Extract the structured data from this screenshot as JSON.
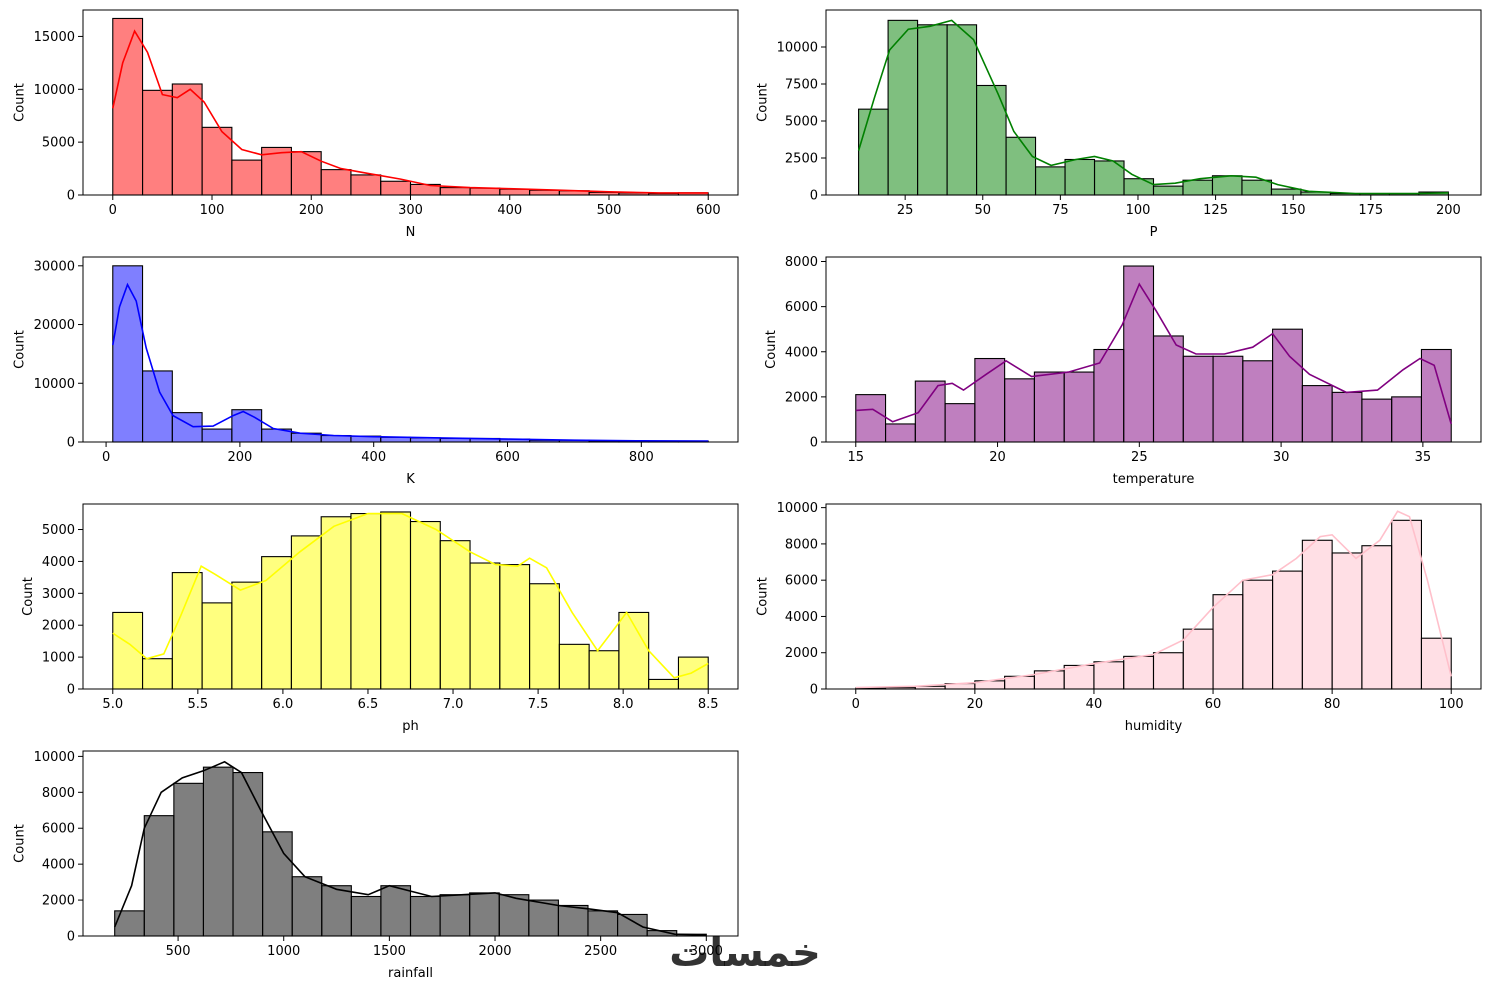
{
  "watermark": "خمسات",
  "chart_data": [
    {
      "type": "histogram",
      "color": "#ff0000",
      "xlabel": "N",
      "ylabel": "Count",
      "xlim": [
        -30,
        630
      ],
      "ylim": [
        0,
        17500
      ],
      "xticks": [
        0,
        100,
        200,
        300,
        400,
        500,
        600
      ],
      "xtick_labels": [
        "0",
        "100",
        "200",
        "300",
        "400",
        "500",
        "600"
      ],
      "yticks": [
        0,
        5000,
        10000,
        15000
      ],
      "ytick_labels": [
        "0",
        "5000",
        "10000",
        "15000"
      ],
      "bins": [
        0,
        30,
        60,
        90,
        120,
        150,
        180,
        210,
        240,
        270,
        300,
        330,
        360,
        390,
        420,
        450,
        480,
        510,
        540,
        570,
        600
      ],
      "counts": [
        16700,
        9900,
        10500,
        6400,
        3300,
        4500,
        4100,
        2400,
        1900,
        1300,
        1000,
        700,
        650,
        550,
        450,
        400,
        250,
        200,
        150,
        200
      ],
      "kde": [
        [
          0,
          8200
        ],
        [
          10,
          12500
        ],
        [
          22,
          15500
        ],
        [
          35,
          13500
        ],
        [
          50,
          9500
        ],
        [
          65,
          9200
        ],
        [
          78,
          10000
        ],
        [
          92,
          8800
        ],
        [
          110,
          6000
        ],
        [
          130,
          4300
        ],
        [
          150,
          3800
        ],
        [
          170,
          4000
        ],
        [
          190,
          4100
        ],
        [
          210,
          3200
        ],
        [
          230,
          2500
        ],
        [
          260,
          2000
        ],
        [
          290,
          1500
        ],
        [
          320,
          900
        ],
        [
          360,
          700
        ],
        [
          400,
          600
        ],
        [
          450,
          450
        ],
        [
          500,
          300
        ],
        [
          550,
          200
        ],
        [
          600,
          200
        ]
      ]
    },
    {
      "type": "histogram",
      "color": "#008000",
      "xlabel": "P",
      "ylabel": "Count",
      "xlim": [
        -0.5,
        210.5
      ],
      "ylim": [
        0,
        12500
      ],
      "xticks": [
        25,
        50,
        75,
        100,
        125,
        150,
        175,
        200
      ],
      "xtick_labels": [
        "25",
        "50",
        "75",
        "100",
        "125",
        "150",
        "175",
        "200"
      ],
      "yticks": [
        0,
        2500,
        5000,
        7500,
        10000
      ],
      "ytick_labels": [
        "0",
        "2500",
        "5000",
        "7500",
        "10000"
      ],
      "bins": [
        10,
        19.5,
        29,
        38.5,
        48,
        57.5,
        67,
        76.5,
        86,
        95.5,
        105,
        114.5,
        124,
        133.5,
        143,
        152.5,
        162,
        171.5,
        181,
        190.5,
        200
      ],
      "counts": [
        5800,
        11800,
        11500,
        11500,
        7400,
        3900,
        1900,
        2400,
        2300,
        1100,
        600,
        1000,
        1300,
        1000,
        400,
        200,
        100,
        100,
        100,
        200
      ],
      "kde": [
        [
          10,
          3000
        ],
        [
          15,
          6500
        ],
        [
          20,
          9800
        ],
        [
          26,
          11200
        ],
        [
          33,
          11400
        ],
        [
          40,
          11800
        ],
        [
          47,
          10500
        ],
        [
          55,
          6800
        ],
        [
          60,
          4300
        ],
        [
          66,
          2600
        ],
        [
          72,
          2000
        ],
        [
          80,
          2400
        ],
        [
          86,
          2600
        ],
        [
          92,
          2300
        ],
        [
          98,
          1400
        ],
        [
          105,
          700
        ],
        [
          112,
          800
        ],
        [
          120,
          1100
        ],
        [
          130,
          1300
        ],
        [
          138,
          1200
        ],
        [
          145,
          700
        ],
        [
          155,
          250
        ],
        [
          170,
          100
        ],
        [
          190,
          100
        ],
        [
          200,
          150
        ]
      ]
    },
    {
      "type": "histogram",
      "color": "#0000ff",
      "xlabel": "K",
      "ylabel": "Count",
      "xlim": [
        -34.5,
        944.5
      ],
      "ylim": [
        0,
        31500
      ],
      "xticks": [
        0,
        200,
        400,
        600,
        800
      ],
      "xtick_labels": [
        "0",
        "200",
        "400",
        "600",
        "800"
      ],
      "yticks": [
        0,
        10000,
        20000,
        30000
      ],
      "ytick_labels": [
        "0",
        "10000",
        "20000",
        "30000"
      ],
      "bins": [
        10,
        54.5,
        99,
        143.5,
        188,
        232.5,
        277,
        321.5,
        366,
        410.5,
        455,
        499.5,
        544,
        588.5,
        633,
        677.5,
        722,
        766.5,
        811,
        855.5,
        900
      ],
      "counts": [
        30000,
        12100,
        5000,
        2200,
        5500,
        2200,
        1500,
        1100,
        1000,
        800,
        700,
        600,
        600,
        500,
        300,
        300,
        200,
        200,
        150,
        150
      ],
      "kde": [
        [
          10,
          16500
        ],
        [
          20,
          23000
        ],
        [
          32,
          26800
        ],
        [
          45,
          24000
        ],
        [
          60,
          16000
        ],
        [
          80,
          8500
        ],
        [
          100,
          4500
        ],
        [
          130,
          2600
        ],
        [
          160,
          2700
        ],
        [
          190,
          4500
        ],
        [
          205,
          5200
        ],
        [
          222,
          4200
        ],
        [
          250,
          2300
        ],
        [
          290,
          1500
        ],
        [
          340,
          1100
        ],
        [
          400,
          900
        ],
        [
          500,
          700
        ],
        [
          600,
          500
        ],
        [
          700,
          300
        ],
        [
          800,
          200
        ],
        [
          900,
          150
        ]
      ]
    },
    {
      "type": "histogram",
      "color": "#800080",
      "xlabel": "temperature",
      "ylabel": "Count",
      "xlim": [
        13.95,
        37.05
      ],
      "ylim": [
        0,
        8200
      ],
      "xticks": [
        15,
        20,
        25,
        30,
        35
      ],
      "xtick_labels": [
        "15",
        "20",
        "25",
        "30",
        "35"
      ],
      "yticks": [
        0,
        2000,
        4000,
        6000,
        8000
      ],
      "ytick_labels": [
        "0",
        "2000",
        "4000",
        "6000",
        "8000"
      ],
      "bins": [
        15,
        16.05,
        17.1,
        18.15,
        19.2,
        20.25,
        21.3,
        22.35,
        23.4,
        24.45,
        25.5,
        26.55,
        27.6,
        28.65,
        29.7,
        30.75,
        31.8,
        32.85,
        33.9,
        34.95,
        36
      ],
      "counts": [
        2100,
        800,
        2700,
        1700,
        3700,
        2800,
        3100,
        3100,
        4100,
        7800,
        4700,
        3800,
        3800,
        3600,
        5000,
        2500,
        2200,
        1900,
        2000,
        4100
      ],
      "kde": [
        [
          15,
          1400
        ],
        [
          15.6,
          1450
        ],
        [
          16.3,
          900
        ],
        [
          17.2,
          1300
        ],
        [
          17.9,
          2500
        ],
        [
          18.4,
          2600
        ],
        [
          18.8,
          2300
        ],
        [
          19.6,
          3000
        ],
        [
          20.3,
          3600
        ],
        [
          21.2,
          2900
        ],
        [
          22.5,
          3100
        ],
        [
          23.6,
          3500
        ],
        [
          24.4,
          5200
        ],
        [
          25,
          7000
        ],
        [
          25.6,
          5800
        ],
        [
          26.3,
          4300
        ],
        [
          27,
          3900
        ],
        [
          28,
          3900
        ],
        [
          29,
          4200
        ],
        [
          29.7,
          4800
        ],
        [
          30.3,
          3800
        ],
        [
          31,
          3000
        ],
        [
          32.3,
          2200
        ],
        [
          33.4,
          2300
        ],
        [
          34.3,
          3200
        ],
        [
          34.9,
          3700
        ],
        [
          35.4,
          3400
        ],
        [
          36,
          800
        ]
      ]
    },
    {
      "type": "histogram",
      "color": "#ffff00",
      "xlabel": "ph",
      "ylabel": "Count",
      "xlim": [
        4.825,
        8.675
      ],
      "ylim": [
        0,
        5800
      ],
      "xticks": [
        5.0,
        5.5,
        6.0,
        6.5,
        7.0,
        7.5,
        8.0,
        8.5
      ],
      "xtick_labels": [
        "5.0",
        "5.5",
        "6.0",
        "6.5",
        "7.0",
        "7.5",
        "8.0",
        "8.5"
      ],
      "yticks": [
        0,
        1000,
        2000,
        3000,
        4000,
        5000
      ],
      "ytick_labels": [
        "0",
        "1000",
        "2000",
        "3000",
        "4000",
        "5000"
      ],
      "bins": [
        5,
        5.175,
        5.35,
        5.525,
        5.7,
        5.875,
        6.05,
        6.225,
        6.4,
        6.575,
        6.75,
        6.925,
        7.1,
        7.275,
        7.45,
        7.625,
        7.8,
        7.975,
        8.15,
        8.325,
        8.5
      ],
      "counts": [
        2400,
        950,
        3650,
        2700,
        3350,
        4150,
        4800,
        5400,
        5500,
        5550,
        5250,
        4650,
        3950,
        3900,
        3300,
        1400,
        1200,
        2400,
        300,
        1000
      ],
      "kde": [
        [
          5,
          1750
        ],
        [
          5.1,
          1400
        ],
        [
          5.2,
          950
        ],
        [
          5.3,
          1100
        ],
        [
          5.4,
          2300
        ],
        [
          5.52,
          3850
        ],
        [
          5.6,
          3600
        ],
        [
          5.75,
          3100
        ],
        [
          5.9,
          3400
        ],
        [
          6.1,
          4300
        ],
        [
          6.3,
          5100
        ],
        [
          6.5,
          5500
        ],
        [
          6.7,
          5500
        ],
        [
          6.9,
          5000
        ],
        [
          7.1,
          4300
        ],
        [
          7.25,
          3900
        ],
        [
          7.38,
          3850
        ],
        [
          7.45,
          4100
        ],
        [
          7.55,
          3800
        ],
        [
          7.7,
          2400
        ],
        [
          7.85,
          1200
        ],
        [
          7.95,
          1900
        ],
        [
          8.02,
          2400
        ],
        [
          8.15,
          1200
        ],
        [
          8.3,
          350
        ],
        [
          8.4,
          500
        ],
        [
          8.5,
          800
        ]
      ]
    },
    {
      "type": "histogram",
      "color": "#ffc0cb",
      "xlabel": "humidity",
      "ylabel": "Count",
      "xlim": [
        -5,
        105
      ],
      "ylim": [
        0,
        10200
      ],
      "xticks": [
        0,
        20,
        40,
        60,
        80,
        100
      ],
      "xtick_labels": [
        "0",
        "20",
        "40",
        "60",
        "80",
        "100"
      ],
      "yticks": [
        0,
        2000,
        4000,
        6000,
        8000,
        10000
      ],
      "ytick_labels": [
        "0",
        "2000",
        "4000",
        "6000",
        "8000",
        "10000"
      ],
      "bins": [
        0,
        5,
        10,
        15,
        20,
        25,
        30,
        35,
        40,
        45,
        50,
        55,
        60,
        65,
        70,
        75,
        80,
        85,
        90,
        95,
        100
      ],
      "counts": [
        50,
        80,
        150,
        300,
        450,
        700,
        1000,
        1300,
        1500,
        1800,
        2000,
        3300,
        5200,
        6000,
        6500,
        8200,
        7500,
        7900,
        9300,
        2800
      ],
      "kde": [
        [
          0,
          80
        ],
        [
          10,
          150
        ],
        [
          20,
          350
        ],
        [
          30,
          800
        ],
        [
          40,
          1400
        ],
        [
          50,
          1900
        ],
        [
          55,
          2700
        ],
        [
          60,
          4500
        ],
        [
          65,
          6000
        ],
        [
          70,
          6300
        ],
        [
          74,
          7200
        ],
        [
          78,
          8400
        ],
        [
          80,
          8500
        ],
        [
          84,
          7200
        ],
        [
          88,
          8200
        ],
        [
          91,
          9800
        ],
        [
          93,
          9500
        ],
        [
          96,
          6000
        ],
        [
          100,
          700
        ]
      ]
    },
    {
      "type": "histogram",
      "color": "#000000",
      "xlabel": "rainfall",
      "ylabel": "Count",
      "xlim": [
        50,
        3150
      ],
      "ylim": [
        0,
        10300
      ],
      "xticks": [
        500,
        1000,
        1500,
        2000,
        2500,
        3000
      ],
      "xtick_labels": [
        "500",
        "1000",
        "1500",
        "2000",
        "2500",
        "3000"
      ],
      "yticks": [
        0,
        2000,
        4000,
        6000,
        8000,
        10000
      ],
      "ytick_labels": [
        "0",
        "2000",
        "4000",
        "6000",
        "8000",
        "10000"
      ],
      "bins": [
        200,
        340,
        480,
        620,
        760,
        900,
        1040,
        1180,
        1320,
        1460,
        1600,
        1740,
        1880,
        2020,
        2160,
        2300,
        2440,
        2580,
        2720,
        2860,
        3000
      ],
      "counts": [
        1400,
        6700,
        8500,
        9400,
        9100,
        5800,
        3300,
        2800,
        2200,
        2800,
        2200,
        2300,
        2400,
        2300,
        2000,
        1700,
        1400,
        1200,
        300,
        100
      ],
      "kde": [
        [
          200,
          500
        ],
        [
          280,
          2800
        ],
        [
          340,
          6000
        ],
        [
          420,
          8000
        ],
        [
          520,
          8800
        ],
        [
          620,
          9200
        ],
        [
          720,
          9700
        ],
        [
          800,
          9100
        ],
        [
          900,
          6800
        ],
        [
          1000,
          4600
        ],
        [
          1100,
          3300
        ],
        [
          1250,
          2600
        ],
        [
          1400,
          2300
        ],
        [
          1500,
          2800
        ],
        [
          1600,
          2500
        ],
        [
          1700,
          2200
        ],
        [
          1850,
          2300
        ],
        [
          2000,
          2400
        ],
        [
          2100,
          2100
        ],
        [
          2300,
          1700
        ],
        [
          2450,
          1500
        ],
        [
          2580,
          1300
        ],
        [
          2700,
          500
        ],
        [
          2850,
          100
        ],
        [
          3000,
          50
        ]
      ]
    }
  ]
}
